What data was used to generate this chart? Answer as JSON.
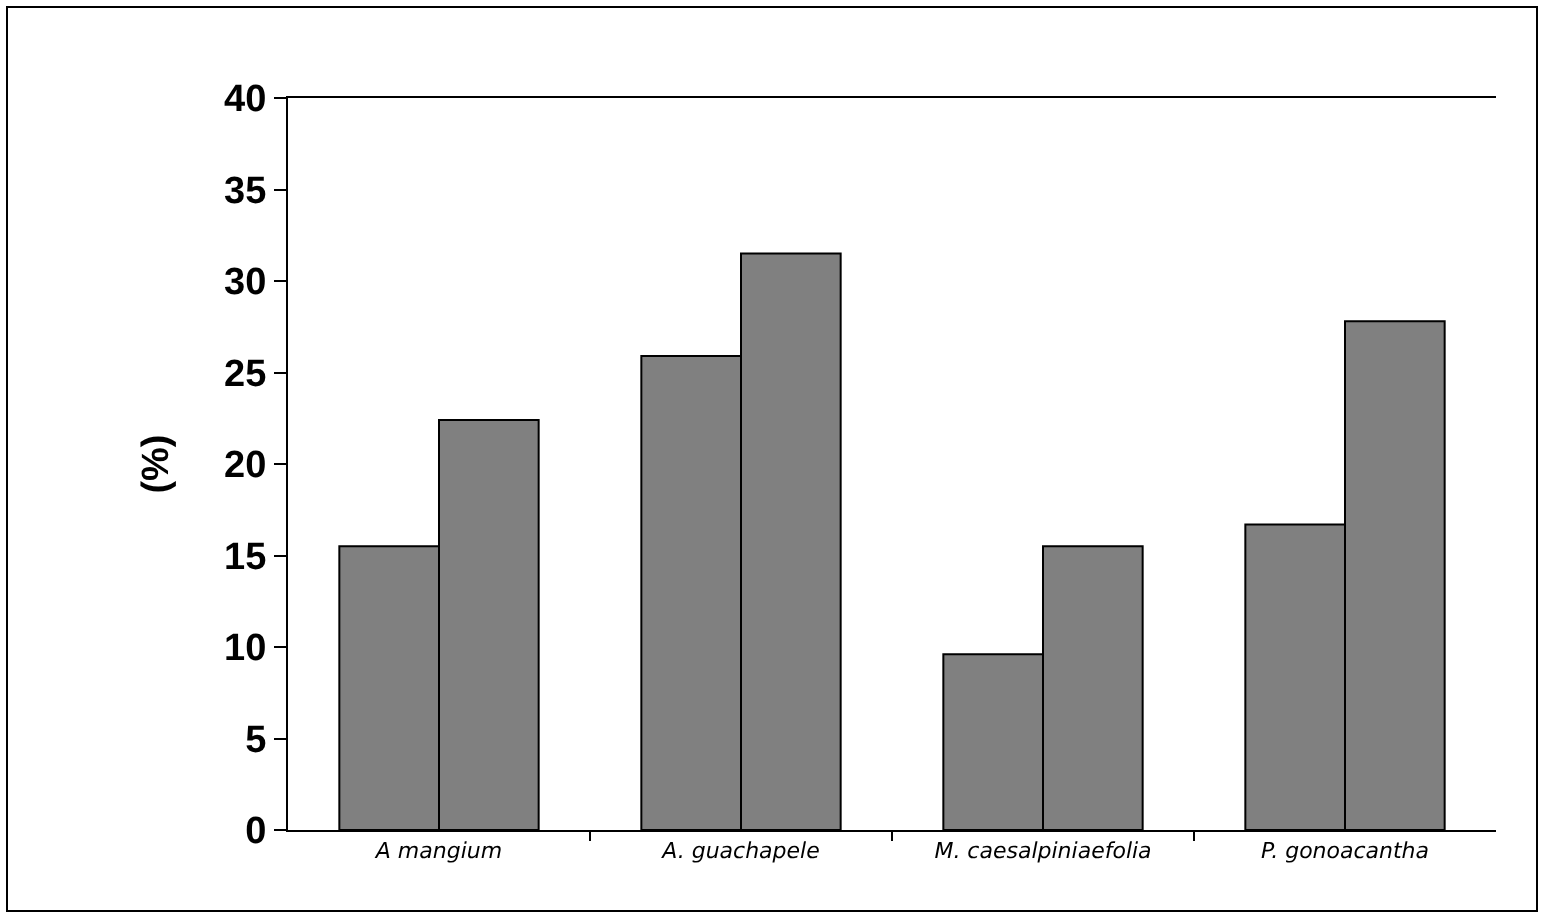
{
  "chart_data": {
    "type": "bar",
    "ylabel": "(%)",
    "categories": [
      "A mangium",
      "A. guachapele",
      "M. caesalpiniaefolia",
      "P. gonoacantha"
    ],
    "series": [
      {
        "color": "#808080",
        "values": [
          15.5,
          25.9,
          9.6,
          16.7
        ]
      },
      {
        "color": "#808080",
        "values": [
          22.4,
          31.5,
          15.5,
          27.8
        ]
      }
    ],
    "ylim": [
      0,
      40
    ],
    "yticks": [
      0,
      5,
      10,
      15,
      20,
      25,
      30,
      35,
      40
    ],
    "grid": false
  }
}
